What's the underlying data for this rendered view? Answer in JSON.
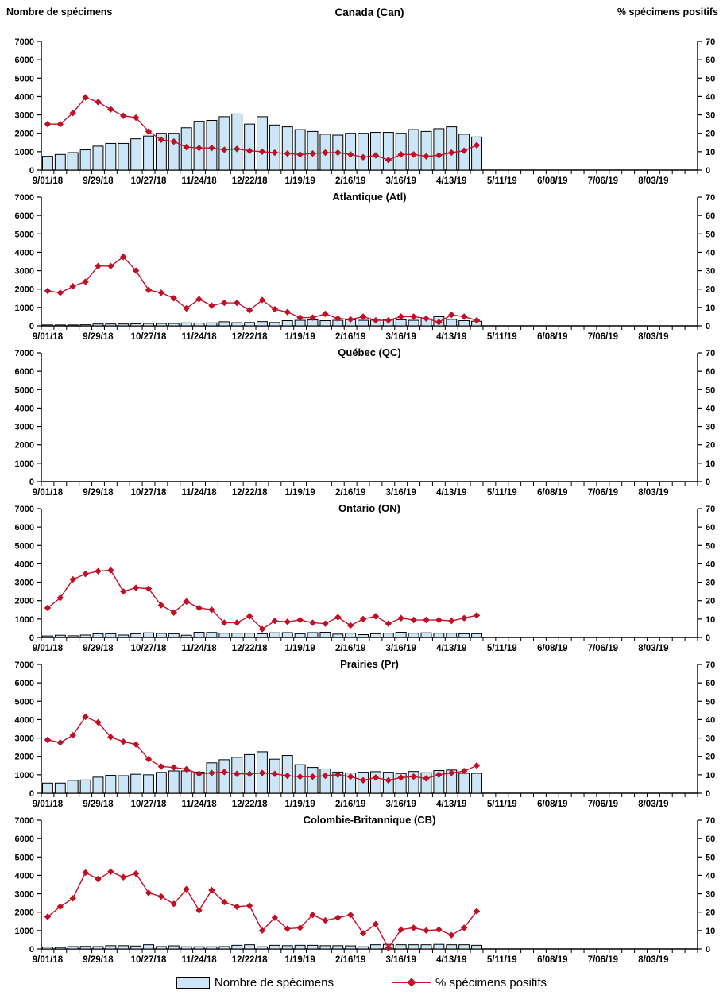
{
  "page": {
    "left_axis_title": "Nombre de spécimens",
    "right_axis_title": "% spécimens positifs"
  },
  "legend": {
    "bars_label": "Nombre de spécimens",
    "line_label": "% spécimens positifs"
  },
  "colors": {
    "bar_fill": "#CDE6F7",
    "bar_border": "#000000",
    "line": "#C8102E",
    "marker": "#C00E22",
    "axis": "#000000"
  },
  "axes": {
    "left_ticks": [
      0,
      1000,
      2000,
      3000,
      4000,
      5000,
      6000,
      7000
    ],
    "right_ticks": [
      0,
      10,
      20,
      30,
      40,
      50,
      60,
      70
    ],
    "left_max": 7000,
    "right_max": 70,
    "x_labels": [
      "9/01/18",
      "9/29/18",
      "10/27/18",
      "11/24/18",
      "12/22/18",
      "1/19/19",
      "2/16/19",
      "3/16/19",
      "4/13/19",
      "5/11/19",
      "6/08/19",
      "7/06/19",
      "8/03/19"
    ],
    "weeks_total": 52,
    "label_every_weeks": 4,
    "grid": "off",
    "legend_position": "bottom-center"
  },
  "chart_data": [
    {
      "type": "combo-bar-line",
      "title": "Canada (Can)",
      "x_start": "9/01/18",
      "x_interval": "weekly",
      "ylim_left": [
        0,
        7000
      ],
      "ylim_right": [
        0,
        70
      ],
      "series": [
        {
          "name": "Nombre de spécimens",
          "type": "bar",
          "axis": "left",
          "values": [
            750,
            850,
            950,
            1100,
            1300,
            1450,
            1450,
            1700,
            1850,
            2000,
            2000,
            2300,
            2650,
            2700,
            2900,
            3050,
            2500,
            2900,
            2450,
            2350,
            2200,
            2100,
            1950,
            1900,
            2000,
            2000,
            2050,
            2050,
            2000,
            2200,
            2100,
            2250,
            2350,
            1950,
            1800
          ]
        },
        {
          "name": "% spécimens positifs",
          "type": "line",
          "axis": "right",
          "values": [
            25,
            25,
            31,
            39.5,
            37,
            33,
            29.5,
            28.5,
            21,
            16.5,
            15.5,
            12.5,
            12,
            12,
            11,
            11.5,
            10.5,
            10,
            9.5,
            9,
            8.5,
            9,
            9.5,
            9.5,
            8.5,
            7,
            8,
            5.5,
            8.5,
            8.5,
            7.5,
            8,
            9.5,
            10.5,
            13.5
          ]
        }
      ]
    },
    {
      "type": "combo-bar-line",
      "title": "Atlantique (Atl)",
      "x_start": "9/01/18",
      "x_interval": "weekly",
      "ylim_left": [
        0,
        7000
      ],
      "ylim_right": [
        0,
        70
      ],
      "series": [
        {
          "name": "Nombre de spécimens",
          "type": "bar",
          "axis": "left",
          "values": [
            50,
            50,
            50,
            60,
            100,
            100,
            100,
            110,
            130,
            130,
            130,
            160,
            150,
            160,
            220,
            170,
            180,
            230,
            180,
            280,
            300,
            320,
            280,
            300,
            330,
            300,
            310,
            350,
            330,
            300,
            380,
            500,
            350,
            280,
            250
          ]
        },
        {
          "name": "% spécimens positifs",
          "type": "line",
          "axis": "right",
          "values": [
            19,
            18,
            21.5,
            24,
            32.5,
            32.5,
            37.5,
            30,
            19.5,
            18,
            15,
            9.5,
            14.5,
            11,
            12.5,
            12.5,
            8.5,
            14,
            9,
            7.5,
            4.5,
            4.5,
            6.5,
            4,
            3.5,
            5,
            3,
            3,
            5,
            5,
            4,
            2,
            6,
            5,
            3
          ]
        }
      ]
    },
    {
      "type": "combo-bar-line",
      "title": "Québec (QC)",
      "x_start": "9/01/18",
      "x_interval": "weekly",
      "ylim_left": [
        0,
        7000
      ],
      "ylim_right": [
        0,
        70
      ],
      "series": [
        {
          "name": "Nombre de spécimens",
          "type": "bar",
          "axis": "left",
          "values": []
        },
        {
          "name": "% spécimens positifs",
          "type": "line",
          "axis": "right",
          "values": []
        }
      ]
    },
    {
      "type": "combo-bar-line",
      "title": "Ontario (ON)",
      "x_start": "9/01/18",
      "x_interval": "weekly",
      "ylim_left": [
        0,
        7000
      ],
      "ylim_right": [
        0,
        70
      ],
      "series": [
        {
          "name": "Nombre de spécimens",
          "type": "bar",
          "axis": "left",
          "values": [
            80,
            120,
            90,
            130,
            200,
            200,
            130,
            200,
            250,
            220,
            200,
            120,
            280,
            270,
            230,
            230,
            230,
            200,
            250,
            260,
            200,
            260,
            280,
            180,
            230,
            150,
            200,
            230,
            280,
            230,
            250,
            230,
            230,
            200,
            200
          ]
        },
        {
          "name": "% spécimens positifs",
          "type": "line",
          "axis": "right",
          "values": [
            16,
            21.5,
            31.5,
            34.5,
            36,
            36.5,
            25,
            27,
            26.5,
            17.5,
            13.5,
            19.5,
            16,
            15,
            8,
            8,
            11.5,
            4.5,
            9,
            8.5,
            9.5,
            8,
            7.5,
            11,
            6.5,
            10,
            11.5,
            7.5,
            10.5,
            9.5,
            9.5,
            9.5,
            9,
            10.5,
            12
          ]
        }
      ]
    },
    {
      "type": "combo-bar-line",
      "title": "Prairies (Pr)",
      "x_start": "9/01/18",
      "x_interval": "weekly",
      "ylim_left": [
        0,
        7000
      ],
      "ylim_right": [
        0,
        70
      ],
      "series": [
        {
          "name": "Nombre de spécimens",
          "type": "bar",
          "axis": "left",
          "values": [
            550,
            550,
            700,
            720,
            870,
            970,
            950,
            1030,
            1000,
            1130,
            1210,
            1210,
            1150,
            1650,
            1820,
            1950,
            2100,
            2250,
            1850,
            2050,
            1550,
            1400,
            1320,
            1150,
            1100,
            1140,
            1170,
            1140,
            1070,
            1180,
            1110,
            1230,
            1260,
            1080,
            1080
          ]
        },
        {
          "name": "% spécimens positifs",
          "type": "line",
          "axis": "right",
          "values": [
            29,
            27.5,
            31.5,
            41.5,
            38.5,
            30.5,
            28,
            26.5,
            18.5,
            14.5,
            14,
            13,
            10.5,
            11,
            11.5,
            10.5,
            10.5,
            11,
            10.5,
            9.5,
            9,
            9,
            9.5,
            10,
            9,
            7,
            8.5,
            7,
            8.5,
            9,
            8,
            10,
            11,
            12,
            15
          ]
        }
      ]
    },
    {
      "type": "combo-bar-line",
      "title": "Colombie-Britannique (CB)",
      "x_start": "9/01/18",
      "x_interval": "weekly",
      "ylim_left": [
        0,
        7000
      ],
      "ylim_right": [
        0,
        70
      ],
      "series": [
        {
          "name": "Nombre de spécimens",
          "type": "bar",
          "axis": "left",
          "values": [
            100,
            80,
            130,
            140,
            130,
            180,
            180,
            160,
            230,
            130,
            170,
            120,
            120,
            120,
            130,
            200,
            230,
            120,
            200,
            180,
            200,
            200,
            180,
            180,
            170,
            120,
            230,
            250,
            230,
            230,
            230,
            250,
            230,
            230,
            200
          ]
        },
        {
          "name": "% spécimens positifs",
          "type": "line",
          "axis": "right",
          "values": [
            17.5,
            23,
            27.5,
            41.5,
            38,
            42,
            39,
            41,
            30.5,
            28.5,
            24.5,
            32.5,
            21,
            32,
            25.5,
            23,
            23.5,
            10,
            17,
            11,
            11.5,
            18.5,
            15.5,
            17,
            18.5,
            8.5,
            13.5,
            0.5,
            10.5,
            11.5,
            10,
            10.5,
            7.5,
            11.5,
            20.5
          ]
        }
      ]
    }
  ]
}
